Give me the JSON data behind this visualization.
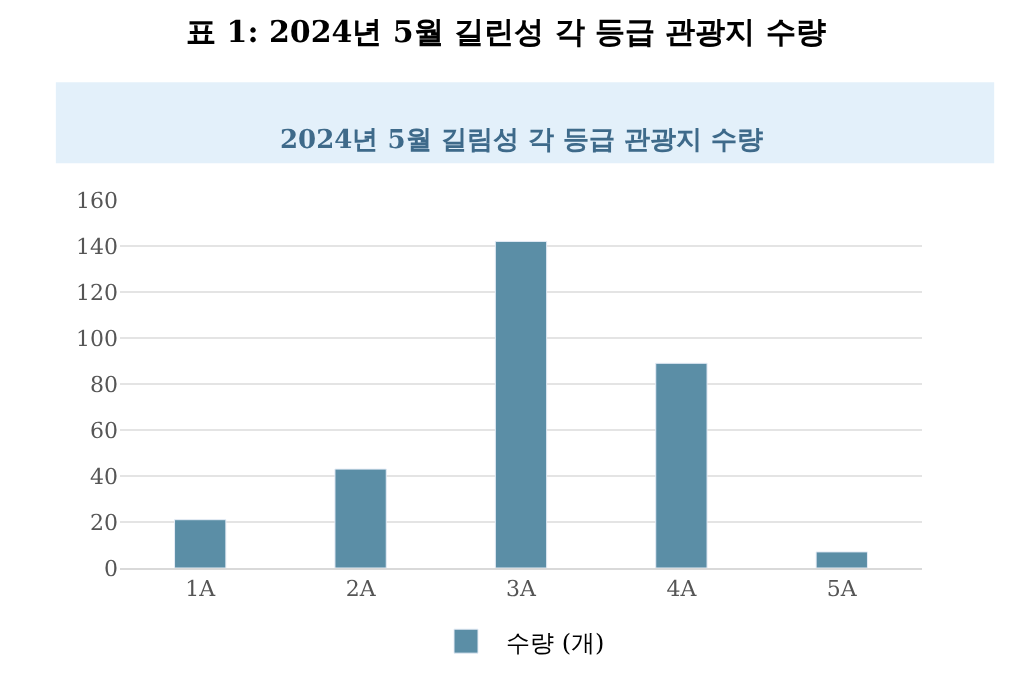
{
  "chart_data": {
    "type": "bar",
    "title": "표 1: 2024년 5월 길린성 각 등급 관광지 수량",
    "subtitle": "2024년 5월 길림성 각 등급 관광지 수량",
    "categories": [
      "1A",
      "2A",
      "3A",
      "4A",
      "5A"
    ],
    "series": [
      {
        "name": "수량 (개)",
        "color": "#5b8ea6",
        "values": [
          21,
          43,
          142,
          89,
          7
        ]
      }
    ],
    "ylim": [
      0,
      160
    ],
    "yticks": [
      0,
      20,
      40,
      60,
      80,
      100,
      120,
      140,
      160
    ],
    "grid": "y",
    "legend": "bottom"
  }
}
